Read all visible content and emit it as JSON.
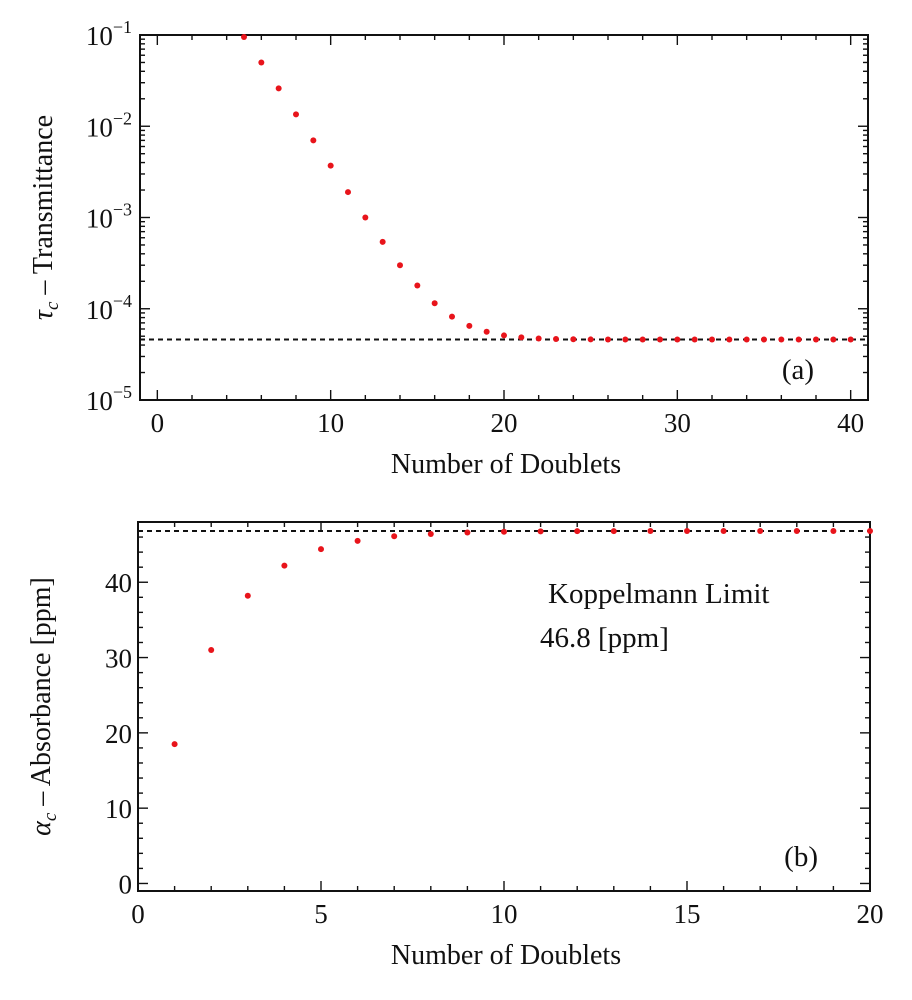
{
  "chart_data": [
    {
      "type": "scatter",
      "panel_label": "(a)",
      "xlabel": "Number of Doublets",
      "ylabel_symbol": "τ",
      "ylabel_sub": "c",
      "ylabel_text": " – Transmittance",
      "yscale": "log",
      "xlim": [
        -1,
        41
      ],
      "ylim": [
        1e-05,
        0.1
      ],
      "xticks": [
        0,
        10,
        20,
        30,
        40
      ],
      "yticks": [
        {
          "value": 0.1,
          "base": "10",
          "exp": "−1"
        },
        {
          "value": 0.01,
          "base": "10",
          "exp": "−2"
        },
        {
          "value": 0.001,
          "base": "10",
          "exp": "−3"
        },
        {
          "value": 0.0001,
          "base": "10",
          "exp": "−4"
        },
        {
          "value": 1e-05,
          "base": "10",
          "exp": "−5"
        }
      ],
      "reference_line": 4.6e-05,
      "x": [
        5,
        6,
        7,
        8,
        9,
        10,
        11,
        12,
        13,
        14,
        15,
        16,
        17,
        18,
        19,
        20,
        21,
        22,
        23,
        24,
        25,
        26,
        27,
        28,
        29,
        30,
        31,
        32,
        33,
        34,
        35,
        36,
        37,
        38,
        39,
        40
      ],
      "y": [
        0.095,
        0.05,
        0.026,
        0.0135,
        0.007,
        0.0037,
        0.0019,
        0.001,
        0.00054,
        0.0003,
        0.00018,
        0.000115,
        8.2e-05,
        6.5e-05,
        5.6e-05,
        5.1e-05,
        4.85e-05,
        4.72e-05,
        4.66e-05,
        4.63e-05,
        4.61e-05,
        4.6e-05,
        4.6e-05,
        4.6e-05,
        4.6e-05,
        4.6e-05,
        4.6e-05,
        4.6e-05,
        4.6e-05,
        4.6e-05,
        4.6e-05,
        4.6e-05,
        4.6e-05,
        4.6e-05,
        4.6e-05,
        4.6e-05
      ]
    },
    {
      "type": "scatter",
      "panel_label": "(b)",
      "xlabel": "Number of Doublets",
      "ylabel_symbol": "α",
      "ylabel_sub": "c",
      "ylabel_text": " – Absorbance [ppm]",
      "yscale": "linear",
      "xlim": [
        0,
        20
      ],
      "ylim": [
        -1,
        48
      ],
      "xticks": [
        0,
        5,
        10,
        15,
        20
      ],
      "yticks": [
        0,
        10,
        20,
        30,
        40
      ],
      "reference_line": 46.8,
      "annotation_title": "Koppelmann Limit",
      "annotation_value": "46.8 [ppm]",
      "x": [
        1,
        2,
        3,
        4,
        5,
        6,
        7,
        8,
        9,
        10,
        11,
        12,
        13,
        14,
        15,
        16,
        17,
        18,
        19,
        20
      ],
      "y": [
        18.5,
        31.0,
        38.2,
        42.2,
        44.4,
        45.5,
        46.1,
        46.4,
        46.6,
        46.7,
        46.75,
        46.78,
        46.79,
        46.8,
        46.8,
        46.8,
        46.8,
        46.8,
        46.8,
        46.8
      ]
    }
  ]
}
